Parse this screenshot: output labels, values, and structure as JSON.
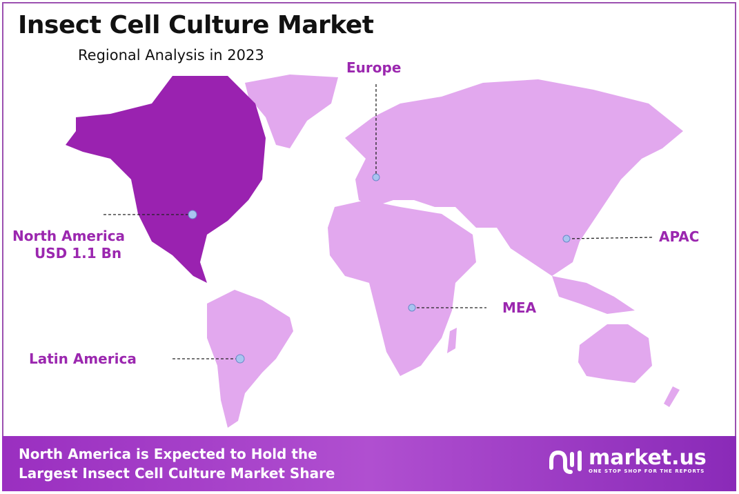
{
  "header": {
    "title": "Insect Cell Culture Market",
    "subtitle": "Regional Analysis in 2023"
  },
  "colors": {
    "highlight_region": "#9a22b0",
    "other_regions": "#e2a8ee",
    "label": "#9b27af",
    "marker": "#a9c4f0"
  },
  "regions": [
    {
      "name": "Europe",
      "highlighted": false
    },
    {
      "name": "North America",
      "value": "USD 1.1 Bn",
      "highlighted": true
    },
    {
      "name": "APAC",
      "highlighted": false
    },
    {
      "name": "MEA",
      "highlighted": false
    },
    {
      "name": "Latin America",
      "highlighted": false
    }
  ],
  "footer": {
    "line1": "North America is Expected to Hold the",
    "line2": "Largest Insect Cell Culture Market Share"
  },
  "logo": {
    "name": "market.us",
    "tagline": "ONE STOP SHOP FOR THE REPORTS"
  }
}
